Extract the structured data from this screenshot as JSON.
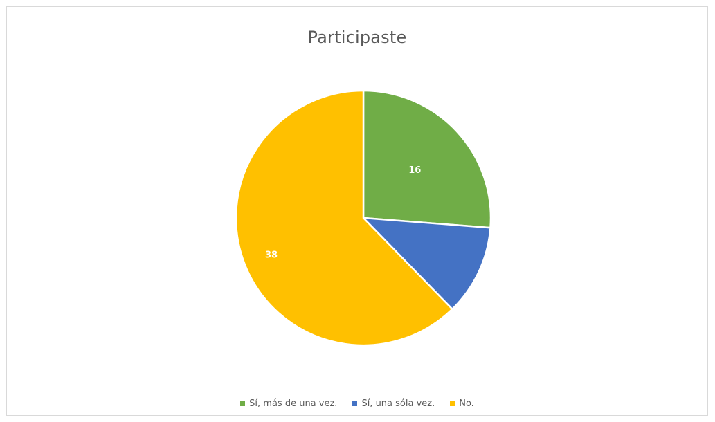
{
  "chart_data": {
    "type": "pie",
    "title": "Participaste",
    "slices": [
      {
        "label": "Sí, más de una vez.",
        "value": 16,
        "data_label": "16",
        "color": "#70ad47"
      },
      {
        "label": "Sí, una sóla vez.",
        "value": 7,
        "data_label": "",
        "color": "#4472c4"
      },
      {
        "label": "No.",
        "value": 38,
        "data_label": "38",
        "color": "#ffc000"
      }
    ],
    "legend": "bottom",
    "start_angle": "12 o'clock",
    "direction": "clockwise"
  }
}
